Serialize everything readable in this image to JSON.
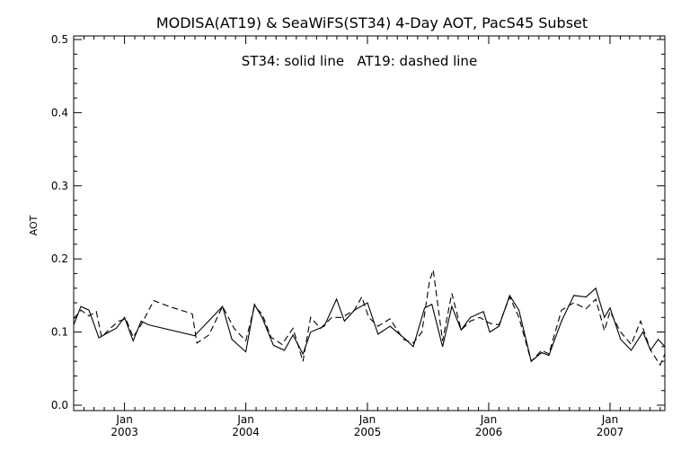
{
  "chart_data": {
    "type": "line",
    "title": "MODISA(AT19) & SeaWiFS(ST34) 4-Day AOT, PacS45 Subset",
    "annotation": "ST34: solid line   AT19: dashed line",
    "ylabel": "AOT",
    "xlabel": "",
    "ylim": [
      0.0,
      0.5
    ],
    "xlim": [
      "2002-08-01",
      "2007-06-15"
    ],
    "yticks": [
      {
        "label": "0.0",
        "value": 0.0
      },
      {
        "label": "0.1",
        "value": 0.1
      },
      {
        "label": "0.2",
        "value": 0.2
      },
      {
        "label": "0.3",
        "value": 0.3
      },
      {
        "label": "0.4",
        "value": 0.4
      },
      {
        "label": "0.5",
        "value": 0.5
      }
    ],
    "xticks": [
      {
        "month": "Jan",
        "year": "2003",
        "date": "2003-01-01"
      },
      {
        "month": "Jan",
        "year": "2004",
        "date": "2004-01-01"
      },
      {
        "month": "Jan",
        "year": "2005",
        "date": "2005-01-01"
      },
      {
        "month": "Jan",
        "year": "2006",
        "date": "2006-01-01"
      },
      {
        "month": "Jan",
        "year": "2007",
        "date": "2007-01-01"
      }
    ],
    "grid": false,
    "series": [
      {
        "name": "ST34",
        "style": "solid",
        "color": "#000000",
        "points": [
          [
            "2002-08-01",
            0.11
          ],
          [
            "2002-08-23",
            0.135
          ],
          [
            "2002-09-16",
            0.13
          ],
          [
            "2002-10-16",
            0.092
          ],
          [
            "2002-11-15",
            0.1
          ],
          [
            "2002-12-07",
            0.105
          ],
          [
            "2003-01-01",
            0.12
          ],
          [
            "2003-01-27",
            0.088
          ],
          [
            "2003-02-20",
            0.115
          ],
          [
            "2003-03-14",
            0.11
          ],
          [
            "2003-07-31",
            0.095
          ],
          [
            "2003-10-23",
            0.135
          ],
          [
            "2003-11-20",
            0.09
          ],
          [
            "2004-01-01",
            0.073
          ],
          [
            "2004-01-27",
            0.138
          ],
          [
            "2004-02-19",
            0.12
          ],
          [
            "2004-03-24",
            0.082
          ],
          [
            "2004-04-26",
            0.075
          ],
          [
            "2004-05-22",
            0.096
          ],
          [
            "2004-06-21",
            0.07
          ],
          [
            "2004-07-14",
            0.1
          ],
          [
            "2004-08-24",
            0.108
          ],
          [
            "2004-09-30",
            0.145
          ],
          [
            "2004-10-24",
            0.115
          ],
          [
            "2004-11-23",
            0.13
          ],
          [
            "2005-01-01",
            0.14
          ],
          [
            "2005-02-02",
            0.097
          ],
          [
            "2005-03-10",
            0.108
          ],
          [
            "2005-04-26",
            0.09
          ],
          [
            "2005-05-19",
            0.08
          ],
          [
            "2005-06-22",
            0.133
          ],
          [
            "2005-07-14",
            0.138
          ],
          [
            "2005-08-15",
            0.08
          ],
          [
            "2005-09-12",
            0.135
          ],
          [
            "2005-10-10",
            0.103
          ],
          [
            "2005-11-07",
            0.12
          ],
          [
            "2005-12-16",
            0.128
          ],
          [
            "2006-01-04",
            0.1
          ],
          [
            "2006-02-01",
            0.108
          ],
          [
            "2006-03-05",
            0.15
          ],
          [
            "2006-04-02",
            0.13
          ],
          [
            "2006-05-09",
            0.06
          ],
          [
            "2006-06-09",
            0.072
          ],
          [
            "2006-07-01",
            0.068
          ],
          [
            "2006-08-08",
            0.115
          ],
          [
            "2006-09-14",
            0.15
          ],
          [
            "2006-10-21",
            0.148
          ],
          [
            "2006-11-19",
            0.16
          ],
          [
            "2006-12-15",
            0.12
          ],
          [
            "2007-01-01",
            0.133
          ],
          [
            "2007-02-02",
            0.09
          ],
          [
            "2007-03-06",
            0.075
          ],
          [
            "2007-04-10",
            0.1
          ],
          [
            "2007-05-03",
            0.075
          ],
          [
            "2007-05-26",
            0.09
          ],
          [
            "2007-06-15",
            0.08
          ]
        ]
      },
      {
        "name": "AT19",
        "style": "dashed",
        "color": "#000000",
        "points": [
          [
            "2002-08-01",
            0.118
          ],
          [
            "2002-08-23",
            0.13
          ],
          [
            "2002-09-16",
            0.122
          ],
          [
            "2002-10-08",
            0.128
          ],
          [
            "2002-10-24",
            0.093
          ],
          [
            "2002-11-19",
            0.105
          ],
          [
            "2002-12-15",
            0.115
          ],
          [
            "2003-01-05",
            0.118
          ],
          [
            "2003-01-27",
            0.093
          ],
          [
            "2003-02-20",
            0.11
          ],
          [
            "2003-03-30",
            0.143
          ],
          [
            "2003-05-15",
            0.135
          ],
          [
            "2003-07-24",
            0.125
          ],
          [
            "2003-08-07",
            0.085
          ],
          [
            "2003-09-12",
            0.096
          ],
          [
            "2003-10-23",
            0.135
          ],
          [
            "2003-11-27",
            0.105
          ],
          [
            "2004-01-01",
            0.088
          ],
          [
            "2004-01-27",
            0.135
          ],
          [
            "2004-02-19",
            0.125
          ],
          [
            "2004-03-17",
            0.093
          ],
          [
            "2004-04-19",
            0.083
          ],
          [
            "2004-05-22",
            0.105
          ],
          [
            "2004-06-21",
            0.06
          ],
          [
            "2004-07-14",
            0.12
          ],
          [
            "2004-08-13",
            0.105
          ],
          [
            "2004-09-16",
            0.12
          ],
          [
            "2004-10-16",
            0.12
          ],
          [
            "2004-11-23",
            0.13
          ],
          [
            "2004-12-15",
            0.148
          ],
          [
            "2005-01-05",
            0.12
          ],
          [
            "2005-02-02",
            0.108
          ],
          [
            "2005-03-10",
            0.118
          ],
          [
            "2005-04-19",
            0.09
          ],
          [
            "2005-05-19",
            0.085
          ],
          [
            "2005-06-14",
            0.1
          ],
          [
            "2005-07-07",
            0.17
          ],
          [
            "2005-07-18",
            0.185
          ],
          [
            "2005-08-15",
            0.088
          ],
          [
            "2005-09-12",
            0.153
          ],
          [
            "2005-10-10",
            0.103
          ],
          [
            "2005-11-07",
            0.115
          ],
          [
            "2005-12-05",
            0.12
          ],
          [
            "2006-01-04",
            0.112
          ],
          [
            "2006-02-01",
            0.11
          ],
          [
            "2006-03-05",
            0.148
          ],
          [
            "2006-04-02",
            0.12
          ],
          [
            "2006-05-09",
            0.06
          ],
          [
            "2006-06-09",
            0.075
          ],
          [
            "2006-07-01",
            0.07
          ],
          [
            "2006-08-08",
            0.13
          ],
          [
            "2006-09-14",
            0.14
          ],
          [
            "2006-10-21",
            0.132
          ],
          [
            "2006-11-19",
            0.145
          ],
          [
            "2006-12-15",
            0.102
          ],
          [
            "2007-01-01",
            0.128
          ],
          [
            "2007-02-02",
            0.1
          ],
          [
            "2007-03-06",
            0.083
          ],
          [
            "2007-04-03",
            0.115
          ],
          [
            "2007-05-03",
            0.075
          ],
          [
            "2007-06-01",
            0.055
          ],
          [
            "2007-06-15",
            0.07
          ]
        ]
      }
    ]
  }
}
